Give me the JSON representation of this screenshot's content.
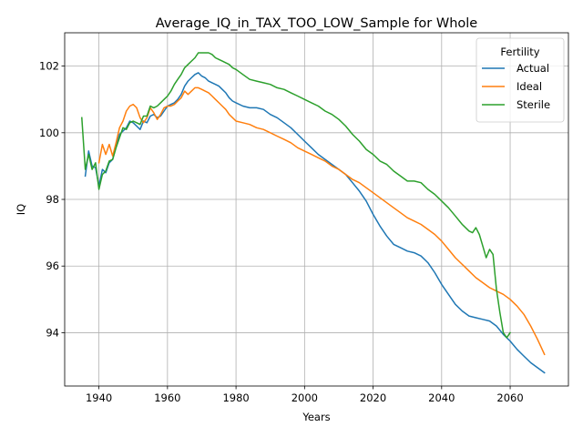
{
  "chart_data": {
    "type": "line",
    "title": "Average_IQ_in_TAX_TOO_LOW_Sample for Whole",
    "xlabel": "Years",
    "ylabel": "IQ",
    "xlim": [
      1930,
      2077
    ],
    "ylim": [
      92.4,
      103.0
    ],
    "xticks": [
      1940,
      1960,
      1980,
      2000,
      2020,
      2040,
      2060
    ],
    "yticks": [
      94,
      96,
      98,
      100,
      102
    ],
    "grid": true,
    "legend": {
      "title": "Fertility",
      "placement": "top-right"
    },
    "series": [
      {
        "name": "Actual",
        "color": "#1f77b4",
        "points": [
          [
            1936,
            98.7
          ],
          [
            1937,
            99.45
          ],
          [
            1938,
            99.0
          ],
          [
            1939,
            98.95
          ],
          [
            1940,
            98.4
          ],
          [
            1941,
            98.9
          ],
          [
            1942,
            98.8
          ],
          [
            1943,
            99.1
          ],
          [
            1944,
            99.2
          ],
          [
            1945,
            99.6
          ],
          [
            1946,
            99.95
          ],
          [
            1947,
            100.05
          ],
          [
            1948,
            100.15
          ],
          [
            1949,
            100.35
          ],
          [
            1950,
            100.3
          ],
          [
            1951,
            100.2
          ],
          [
            1952,
            100.1
          ],
          [
            1953,
            100.35
          ],
          [
            1954,
            100.3
          ],
          [
            1955,
            100.5
          ],
          [
            1956,
            100.55
          ],
          [
            1957,
            100.45
          ],
          [
            1958,
            100.5
          ],
          [
            1959,
            100.65
          ],
          [
            1960,
            100.8
          ],
          [
            1961,
            100.85
          ],
          [
            1962,
            100.9
          ],
          [
            1963,
            101.0
          ],
          [
            1964,
            101.15
          ],
          [
            1965,
            101.4
          ],
          [
            1966,
            101.55
          ],
          [
            1967,
            101.65
          ],
          [
            1968,
            101.75
          ],
          [
            1969,
            101.8
          ],
          [
            1970,
            101.7
          ],
          [
            1971,
            101.65
          ],
          [
            1972,
            101.55
          ],
          [
            1973,
            101.5
          ],
          [
            1974,
            101.45
          ],
          [
            1975,
            101.4
          ],
          [
            1976,
            101.3
          ],
          [
            1977,
            101.2
          ],
          [
            1978,
            101.05
          ],
          [
            1979,
            100.95
          ],
          [
            1980,
            100.9
          ],
          [
            1982,
            100.8
          ],
          [
            1984,
            100.75
          ],
          [
            1986,
            100.75
          ],
          [
            1988,
            100.7
          ],
          [
            1990,
            100.55
          ],
          [
            1992,
            100.45
          ],
          [
            1994,
            100.3
          ],
          [
            1996,
            100.15
          ],
          [
            1998,
            99.95
          ],
          [
            2000,
            99.75
          ],
          [
            2002,
            99.55
          ],
          [
            2004,
            99.35
          ],
          [
            2006,
            99.2
          ],
          [
            2008,
            99.05
          ],
          [
            2010,
            98.9
          ],
          [
            2012,
            98.75
          ],
          [
            2014,
            98.5
          ],
          [
            2016,
            98.25
          ],
          [
            2018,
            97.95
          ],
          [
            2020,
            97.55
          ],
          [
            2022,
            97.2
          ],
          [
            2024,
            96.9
          ],
          [
            2026,
            96.65
          ],
          [
            2028,
            96.55
          ],
          [
            2030,
            96.45
          ],
          [
            2032,
            96.4
          ],
          [
            2034,
            96.3
          ],
          [
            2036,
            96.1
          ],
          [
            2038,
            95.8
          ],
          [
            2040,
            95.45
          ],
          [
            2042,
            95.15
          ],
          [
            2044,
            94.85
          ],
          [
            2046,
            94.65
          ],
          [
            2048,
            94.5
          ],
          [
            2050,
            94.45
          ],
          [
            2052,
            94.4
          ],
          [
            2054,
            94.35
          ],
          [
            2056,
            94.2
          ],
          [
            2058,
            93.95
          ],
          [
            2060,
            93.75
          ],
          [
            2062,
            93.5
          ],
          [
            2064,
            93.3
          ],
          [
            2066,
            93.1
          ],
          [
            2068,
            92.95
          ],
          [
            2070,
            92.8
          ]
        ]
      },
      {
        "name": "Ideal",
        "color": "#ff7f0e",
        "points": [
          [
            1940,
            99.1
          ],
          [
            1941,
            99.65
          ],
          [
            1942,
            99.35
          ],
          [
            1943,
            99.65
          ],
          [
            1944,
            99.3
          ],
          [
            1945,
            99.7
          ],
          [
            1946,
            100.15
          ],
          [
            1947,
            100.35
          ],
          [
            1948,
            100.65
          ],
          [
            1949,
            100.8
          ],
          [
            1950,
            100.85
          ],
          [
            1951,
            100.75
          ],
          [
            1952,
            100.45
          ],
          [
            1953,
            100.3
          ],
          [
            1954,
            100.45
          ],
          [
            1955,
            100.75
          ],
          [
            1956,
            100.6
          ],
          [
            1957,
            100.4
          ],
          [
            1958,
            100.55
          ],
          [
            1959,
            100.75
          ],
          [
            1960,
            100.8
          ],
          [
            1961,
            100.8
          ],
          [
            1962,
            100.85
          ],
          [
            1963,
            100.95
          ],
          [
            1964,
            101.05
          ],
          [
            1965,
            101.25
          ],
          [
            1966,
            101.15
          ],
          [
            1967,
            101.25
          ],
          [
            1968,
            101.35
          ],
          [
            1969,
            101.35
          ],
          [
            1970,
            101.3
          ],
          [
            1971,
            101.25
          ],
          [
            1972,
            101.2
          ],
          [
            1973,
            101.1
          ],
          [
            1974,
            101.0
          ],
          [
            1975,
            100.9
          ],
          [
            1976,
            100.8
          ],
          [
            1977,
            100.7
          ],
          [
            1978,
            100.55
          ],
          [
            1979,
            100.45
          ],
          [
            1980,
            100.35
          ],
          [
            1982,
            100.3
          ],
          [
            1984,
            100.25
          ],
          [
            1986,
            100.15
          ],
          [
            1988,
            100.1
          ],
          [
            1990,
            100.0
          ],
          [
            1992,
            99.9
          ],
          [
            1994,
            99.8
          ],
          [
            1996,
            99.7
          ],
          [
            1998,
            99.55
          ],
          [
            2000,
            99.45
          ],
          [
            2002,
            99.35
          ],
          [
            2004,
            99.25
          ],
          [
            2006,
            99.15
          ],
          [
            2008,
            99.0
          ],
          [
            2010,
            98.9
          ],
          [
            2012,
            98.75
          ],
          [
            2014,
            98.6
          ],
          [
            2016,
            98.5
          ],
          [
            2018,
            98.35
          ],
          [
            2020,
            98.2
          ],
          [
            2022,
            98.05
          ],
          [
            2024,
            97.9
          ],
          [
            2026,
            97.75
          ],
          [
            2028,
            97.6
          ],
          [
            2030,
            97.45
          ],
          [
            2032,
            97.35
          ],
          [
            2034,
            97.25
          ],
          [
            2036,
            97.1
          ],
          [
            2038,
            96.95
          ],
          [
            2040,
            96.75
          ],
          [
            2042,
            96.5
          ],
          [
            2044,
            96.25
          ],
          [
            2046,
            96.05
          ],
          [
            2048,
            95.85
          ],
          [
            2050,
            95.65
          ],
          [
            2052,
            95.5
          ],
          [
            2054,
            95.35
          ],
          [
            2056,
            95.25
          ],
          [
            2058,
            95.15
          ],
          [
            2060,
            95.0
          ],
          [
            2062,
            94.8
          ],
          [
            2064,
            94.55
          ],
          [
            2066,
            94.2
          ],
          [
            2068,
            93.8
          ],
          [
            2070,
            93.35
          ]
        ]
      },
      {
        "name": "Sterile",
        "color": "#2ca02c",
        "points": [
          [
            1935,
            100.45
          ],
          [
            1936,
            98.9
          ],
          [
            1937,
            99.35
          ],
          [
            1938,
            98.9
          ],
          [
            1939,
            99.1
          ],
          [
            1940,
            98.3
          ],
          [
            1941,
            98.75
          ],
          [
            1942,
            98.85
          ],
          [
            1943,
            99.15
          ],
          [
            1944,
            99.2
          ],
          [
            1945,
            99.55
          ],
          [
            1946,
            99.85
          ],
          [
            1947,
            100.15
          ],
          [
            1948,
            100.1
          ],
          [
            1949,
            100.3
          ],
          [
            1950,
            100.35
          ],
          [
            1951,
            100.3
          ],
          [
            1952,
            100.25
          ],
          [
            1953,
            100.5
          ],
          [
            1954,
            100.5
          ],
          [
            1955,
            100.8
          ],
          [
            1956,
            100.75
          ],
          [
            1957,
            100.8
          ],
          [
            1958,
            100.9
          ],
          [
            1959,
            101.0
          ],
          [
            1960,
            101.1
          ],
          [
            1961,
            101.25
          ],
          [
            1962,
            101.45
          ],
          [
            1963,
            101.6
          ],
          [
            1964,
            101.75
          ],
          [
            1965,
            101.95
          ],
          [
            1966,
            102.05
          ],
          [
            1967,
            102.15
          ],
          [
            1968,
            102.25
          ],
          [
            1969,
            102.4
          ],
          [
            1970,
            102.4
          ],
          [
            1971,
            102.4
          ],
          [
            1972,
            102.4
          ],
          [
            1973,
            102.35
          ],
          [
            1974,
            102.25
          ],
          [
            1975,
            102.2
          ],
          [
            1976,
            102.15
          ],
          [
            1977,
            102.1
          ],
          [
            1978,
            102.05
          ],
          [
            1979,
            101.95
          ],
          [
            1980,
            101.9
          ],
          [
            1982,
            101.75
          ],
          [
            1984,
            101.6
          ],
          [
            1986,
            101.55
          ],
          [
            1988,
            101.5
          ],
          [
            1990,
            101.45
          ],
          [
            1992,
            101.35
          ],
          [
            1994,
            101.3
          ],
          [
            1996,
            101.2
          ],
          [
            1998,
            101.1
          ],
          [
            2000,
            101.0
          ],
          [
            2002,
            100.9
          ],
          [
            2004,
            100.8
          ],
          [
            2006,
            100.65
          ],
          [
            2008,
            100.55
          ],
          [
            2010,
            100.4
          ],
          [
            2012,
            100.2
          ],
          [
            2014,
            99.95
          ],
          [
            2016,
            99.75
          ],
          [
            2018,
            99.5
          ],
          [
            2020,
            99.35
          ],
          [
            2022,
            99.15
          ],
          [
            2024,
            99.05
          ],
          [
            2026,
            98.85
          ],
          [
            2028,
            98.7
          ],
          [
            2030,
            98.55
          ],
          [
            2032,
            98.55
          ],
          [
            2034,
            98.5
          ],
          [
            2036,
            98.3
          ],
          [
            2038,
            98.15
          ],
          [
            2040,
            97.95
          ],
          [
            2042,
            97.75
          ],
          [
            2044,
            97.5
          ],
          [
            2046,
            97.25
          ],
          [
            2048,
            97.05
          ],
          [
            2049,
            97.0
          ],
          [
            2050,
            97.15
          ],
          [
            2051,
            96.95
          ],
          [
            2052,
            96.6
          ],
          [
            2053,
            96.25
          ],
          [
            2054,
            96.5
          ],
          [
            2055,
            96.35
          ],
          [
            2056,
            95.3
          ],
          [
            2057,
            94.6
          ],
          [
            2058,
            94.0
          ],
          [
            2059,
            93.85
          ],
          [
            2060,
            94.0
          ]
        ]
      }
    ]
  }
}
